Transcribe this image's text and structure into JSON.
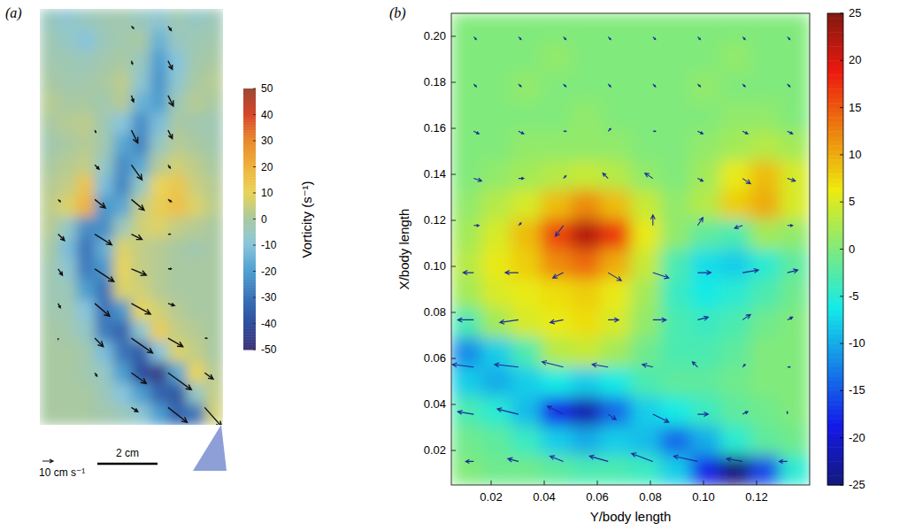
{
  "chart_data": [
    {
      "type": "heatmap",
      "panel": "(a)",
      "tick_labels": false,
      "colorbar_label": "Vorticity (s⁻¹)",
      "color_range": [
        -50,
        50
      ],
      "color_ticks": [
        -50,
        -40,
        -30,
        -20,
        -10,
        0,
        10,
        20,
        30,
        40,
        50
      ],
      "cells": [
        [
          -5,
          -8,
          -5,
          -3,
          -2,
          -5,
          -8,
          -3,
          -6,
          -4
        ],
        [
          -3,
          -6,
          -10,
          -4,
          -2,
          0,
          -15,
          -5,
          -3,
          -2
        ],
        [
          -2,
          -3,
          -4,
          -2,
          0,
          -5,
          -20,
          -10,
          -2,
          0
        ],
        [
          0,
          -2,
          -2,
          0,
          3,
          -8,
          -22,
          -8,
          0,
          2
        ],
        [
          2,
          0,
          0,
          -2,
          2,
          -15,
          -20,
          -3,
          2,
          0
        ],
        [
          0,
          2,
          3,
          -3,
          -10,
          -24,
          -12,
          0,
          -2,
          -3
        ],
        [
          -2,
          0,
          2,
          -2,
          -18,
          -26,
          -6,
          2,
          0,
          -2
        ],
        [
          0,
          2,
          4,
          -6,
          -24,
          -18,
          2,
          6,
          3,
          0
        ],
        [
          2,
          4,
          15,
          -12,
          -26,
          -6,
          10,
          14,
          5,
          2
        ],
        [
          3,
          8,
          20,
          -22,
          -18,
          4,
          12,
          16,
          8,
          3
        ],
        [
          2,
          -6,
          -24,
          -24,
          -4,
          6,
          8,
          4,
          2,
          0
        ],
        [
          0,
          -12,
          -30,
          -16,
          8,
          4,
          2,
          0,
          -2,
          0
        ],
        [
          -2,
          -8,
          -28,
          -22,
          10,
          4,
          2,
          0,
          0,
          0
        ],
        [
          -3,
          -4,
          -20,
          -30,
          8,
          6,
          2,
          0,
          0,
          0
        ],
        [
          -2,
          -3,
          -10,
          -30,
          -22,
          10,
          6,
          2,
          0,
          0
        ],
        [
          0,
          -2,
          -6,
          -28,
          -34,
          -8,
          12,
          4,
          2,
          0
        ],
        [
          0,
          0,
          -2,
          -12,
          -30,
          -36,
          -10,
          8,
          4,
          0
        ],
        [
          0,
          0,
          -2,
          -6,
          -20,
          -40,
          -46,
          -18,
          10,
          2
        ],
        [
          0,
          0,
          0,
          -4,
          -10,
          -20,
          -34,
          -38,
          -6,
          4
        ],
        [
          0,
          0,
          0,
          -2,
          -4,
          -8,
          -20,
          -34,
          -30,
          6
        ]
      ],
      "u": [
        [
          0,
          0,
          2,
          3,
          0
        ],
        [
          0,
          0,
          1,
          4,
          0
        ],
        [
          0,
          0,
          2,
          5,
          0
        ],
        [
          0,
          1,
          6,
          4,
          0
        ],
        [
          0,
          4,
          10,
          2,
          0
        ],
        [
          2,
          10,
          12,
          3,
          0
        ],
        [
          6,
          16,
          10,
          2,
          0
        ],
        [
          4,
          18,
          14,
          3,
          0
        ],
        [
          2,
          14,
          18,
          6,
          0
        ],
        [
          0,
          8,
          20,
          14,
          2
        ],
        [
          0,
          2,
          14,
          22,
          8
        ],
        [
          0,
          0,
          6,
          18,
          16
        ]
      ],
      "v": [
        [
          0,
          0,
          -2,
          -4,
          0
        ],
        [
          0,
          0,
          -3,
          -8,
          0
        ],
        [
          0,
          0,
          -6,
          -10,
          0
        ],
        [
          0,
          -2,
          -12,
          -8,
          0
        ],
        [
          0,
          -4,
          -14,
          -3,
          0
        ],
        [
          -2,
          -8,
          -10,
          -2,
          0
        ],
        [
          -6,
          -10,
          -5,
          0,
          0
        ],
        [
          -6,
          -12,
          -6,
          0,
          0
        ],
        [
          -4,
          -12,
          -10,
          -2,
          0
        ],
        [
          -1,
          -8,
          -14,
          -8,
          0
        ],
        [
          0,
          -3,
          -10,
          -16,
          -6
        ],
        [
          0,
          0,
          -4,
          -14,
          -18
        ]
      ],
      "scale_arrow": {
        "value": 10,
        "label": "10 cm s⁻¹"
      },
      "scale_bar": {
        "value": 2,
        "label": "2 cm"
      }
    },
    {
      "type": "heatmap",
      "panel": "(b)",
      "x_label": "Y/body length",
      "y_label": "X/body length",
      "xlim": [
        0.005,
        0.14
      ],
      "ylim": [
        0.005,
        0.21
      ],
      "xticks": [
        0.02,
        0.04,
        0.06,
        0.08,
        0.1,
        0.12
      ],
      "yticks": [
        0.02,
        0.04,
        0.06,
        0.08,
        0.1,
        0.12,
        0.14,
        0.16,
        0.18,
        0.2
      ],
      "color_range": [
        -25,
        25
      ],
      "color_ticks": [
        -25,
        -20,
        -15,
        -10,
        -5,
        0,
        5,
        10,
        15,
        20,
        25
      ],
      "cells": [
        [
          0,
          0,
          0,
          0,
          0,
          0,
          0,
          0,
          0,
          0,
          0,
          0
        ],
        [
          0,
          0,
          0,
          1,
          0,
          0,
          0,
          0,
          0,
          1,
          0,
          0
        ],
        [
          0,
          0,
          1,
          0,
          0,
          0,
          0,
          0,
          1,
          0,
          0,
          0
        ],
        [
          0,
          0,
          0,
          0,
          1,
          0,
          0,
          0,
          0,
          1,
          1,
          0
        ],
        [
          0,
          0,
          1,
          1,
          1,
          1,
          0,
          0,
          1,
          2,
          3,
          2
        ],
        [
          0,
          1,
          2,
          3,
          4,
          3,
          1,
          0,
          2,
          6,
          9,
          5
        ],
        [
          1,
          3,
          5,
          9,
          12,
          9,
          4,
          1,
          3,
          8,
          10,
          5
        ],
        [
          2,
          5,
          9,
          16,
          22,
          17,
          6,
          1,
          -2,
          -3,
          2,
          1
        ],
        [
          3,
          6,
          8,
          12,
          14,
          10,
          4,
          -3,
          -7,
          -8,
          -5,
          -2
        ],
        [
          2,
          5,
          6,
          7,
          8,
          6,
          2,
          -4,
          -6,
          -5,
          -3,
          -1
        ],
        [
          -3,
          2,
          5,
          6,
          7,
          5,
          1,
          -3,
          -4,
          -3,
          -1,
          0
        ],
        [
          -12,
          -8,
          -3,
          3,
          4,
          2,
          -1,
          -3,
          -3,
          -2,
          0,
          0
        ],
        [
          -8,
          -10,
          -8,
          -6,
          -8,
          -6,
          -3,
          -2,
          -2,
          -1,
          0,
          0
        ],
        [
          -3,
          -5,
          -9,
          -18,
          -22,
          -14,
          -8,
          -6,
          -4,
          -2,
          -1,
          0
        ],
        [
          -1,
          -2,
          -4,
          -8,
          -10,
          -8,
          -9,
          -14,
          -10,
          -5,
          -2,
          -1
        ],
        [
          0,
          -1,
          -1,
          -2,
          -3,
          -3,
          -4,
          -8,
          -18,
          -25,
          -16,
          -5
        ]
      ],
      "u": [
        [
          0.1,
          0.1,
          0.1,
          0.1,
          0.1,
          0.1,
          0.1,
          0.1
        ],
        [
          0.1,
          0.1,
          0.1,
          0.1,
          0.1,
          0.1,
          0.1,
          0.1
        ],
        [
          0.2,
          0.2,
          0.1,
          0.1,
          0.1,
          0.2,
          0.2,
          0.2
        ],
        [
          0.3,
          0.2,
          0.1,
          -0.2,
          -0.3,
          0.2,
          0.3,
          0.3
        ],
        [
          0.2,
          0.1,
          -0.3,
          0,
          0,
          0.2,
          -0.3,
          0.2
        ],
        [
          -0.4,
          -0.5,
          -0.4,
          0.5,
          0.6,
          0.5,
          0.6,
          0.4
        ],
        [
          -0.6,
          -0.7,
          -0.5,
          0.4,
          0.5,
          0.4,
          0.3,
          0.2
        ],
        [
          -0.8,
          -0.9,
          -0.8,
          -0.6,
          -0.4,
          -0.2,
          0.1,
          0.1
        ],
        [
          -0.6,
          -0.8,
          -0.6,
          0.3,
          0.6,
          0.4,
          0.2,
          0
        ],
        [
          -0.3,
          -0.4,
          -0.5,
          -0.7,
          -0.8,
          -0.9,
          -0.6,
          -0.3
        ]
      ],
      "v": [
        [
          -0.1,
          -0.1,
          -0.1,
          -0.1,
          -0.1,
          -0.1,
          -0.1,
          -0.1
        ],
        [
          -0.1,
          -0.1,
          -0.1,
          -0.1,
          -0.1,
          -0.1,
          -0.1,
          -0.1
        ],
        [
          -0.1,
          -0.1,
          0,
          0.1,
          0,
          -0.1,
          -0.1,
          -0.1
        ],
        [
          -0.1,
          0,
          0.1,
          0.2,
          0.2,
          -0.1,
          -0.2,
          -0.1
        ],
        [
          0,
          0.1,
          -0.4,
          0,
          0.4,
          0.3,
          -0.1,
          0
        ],
        [
          0,
          0,
          -0.2,
          -0.3,
          -0.2,
          0,
          0.1,
          0.1
        ],
        [
          0,
          -0.1,
          -0.1,
          0,
          0,
          0.1,
          0.2,
          0.1
        ],
        [
          0.1,
          0.1,
          0.2,
          0.1,
          0.1,
          0.2,
          0.1,
          0
        ],
        [
          0.1,
          0.2,
          0.3,
          -0.2,
          -0.3,
          0,
          0.1,
          0.1
        ],
        [
          0,
          0.1,
          0.2,
          0.2,
          0.3,
          0.2,
          0.1,
          0
        ]
      ]
    }
  ]
}
